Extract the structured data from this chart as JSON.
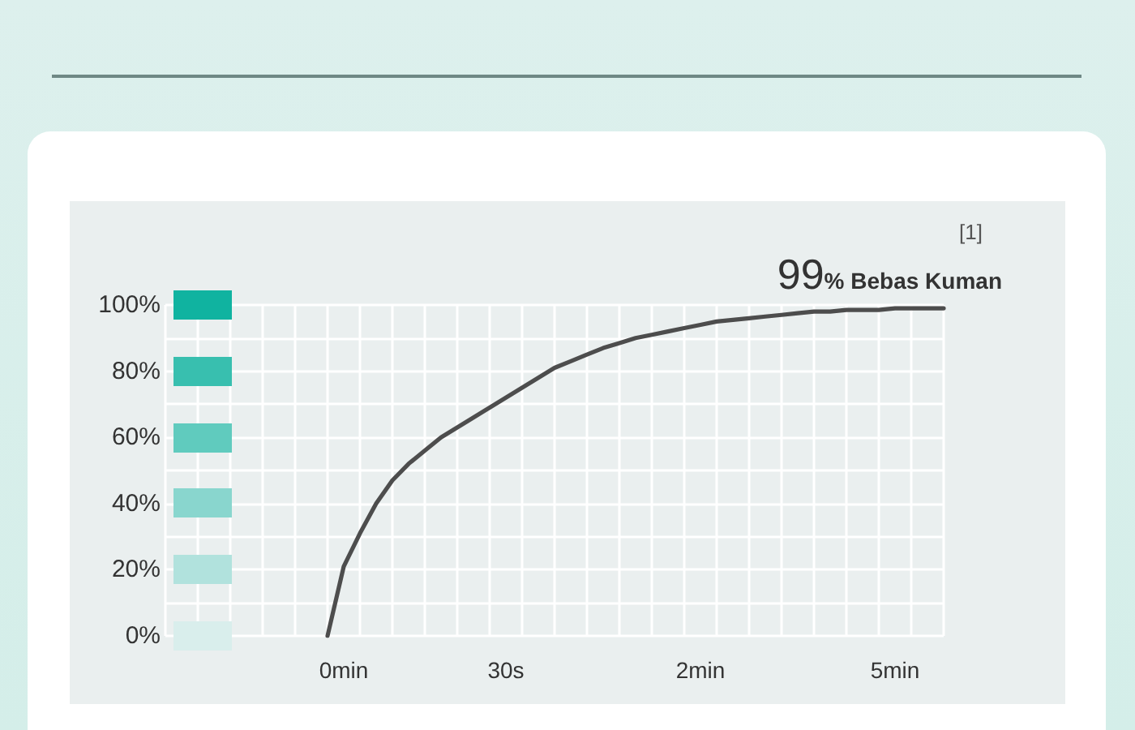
{
  "chart_data": {
    "type": "line",
    "categories": [
      null,
      null,
      null,
      null,
      null,
      null,
      null,
      null,
      null,
      null,
      null,
      "0min",
      null,
      null,
      null,
      null,
      null,
      null,
      null,
      null,
      null,
      "30s",
      null,
      null,
      null,
      null,
      null,
      null,
      null,
      null,
      null,
      null,
      null,
      "2min",
      null,
      null,
      null,
      null,
      null,
      null,
      null,
      null,
      null,
      null,
      null,
      "5min",
      null,
      null,
      null
    ],
    "series": [
      {
        "color": "#4d4d4d",
        "values": [
          null,
          null,
          null,
          null,
          null,
          null,
          null,
          null,
          null,
          null,
          0,
          21,
          31,
          40,
          47,
          52,
          56,
          60,
          63,
          66,
          69,
          72,
          75,
          78,
          81,
          83,
          85,
          87,
          88.5,
          90,
          91,
          92,
          93,
          94,
          95,
          95.5,
          96,
          96.5,
          97,
          97.5,
          98,
          98,
          98.5,
          98.5,
          98.5,
          99,
          99,
          99,
          99
        ]
      }
    ],
    "ylim": [
      0,
      100
    ],
    "yticks": [
      {
        "value": 0,
        "label": "0%"
      },
      {
        "value": 20,
        "label": "20%"
      },
      {
        "value": 40,
        "label": "40%"
      },
      {
        "value": 60,
        "label": "60%"
      },
      {
        "value": 80,
        "label": "80%"
      },
      {
        "value": 100,
        "label": "100%"
      }
    ],
    "grid": true,
    "annotations": [
      {
        "text": "99% Bebas Kuman",
        "y": 99
      },
      "[1]"
    ]
  }
}
